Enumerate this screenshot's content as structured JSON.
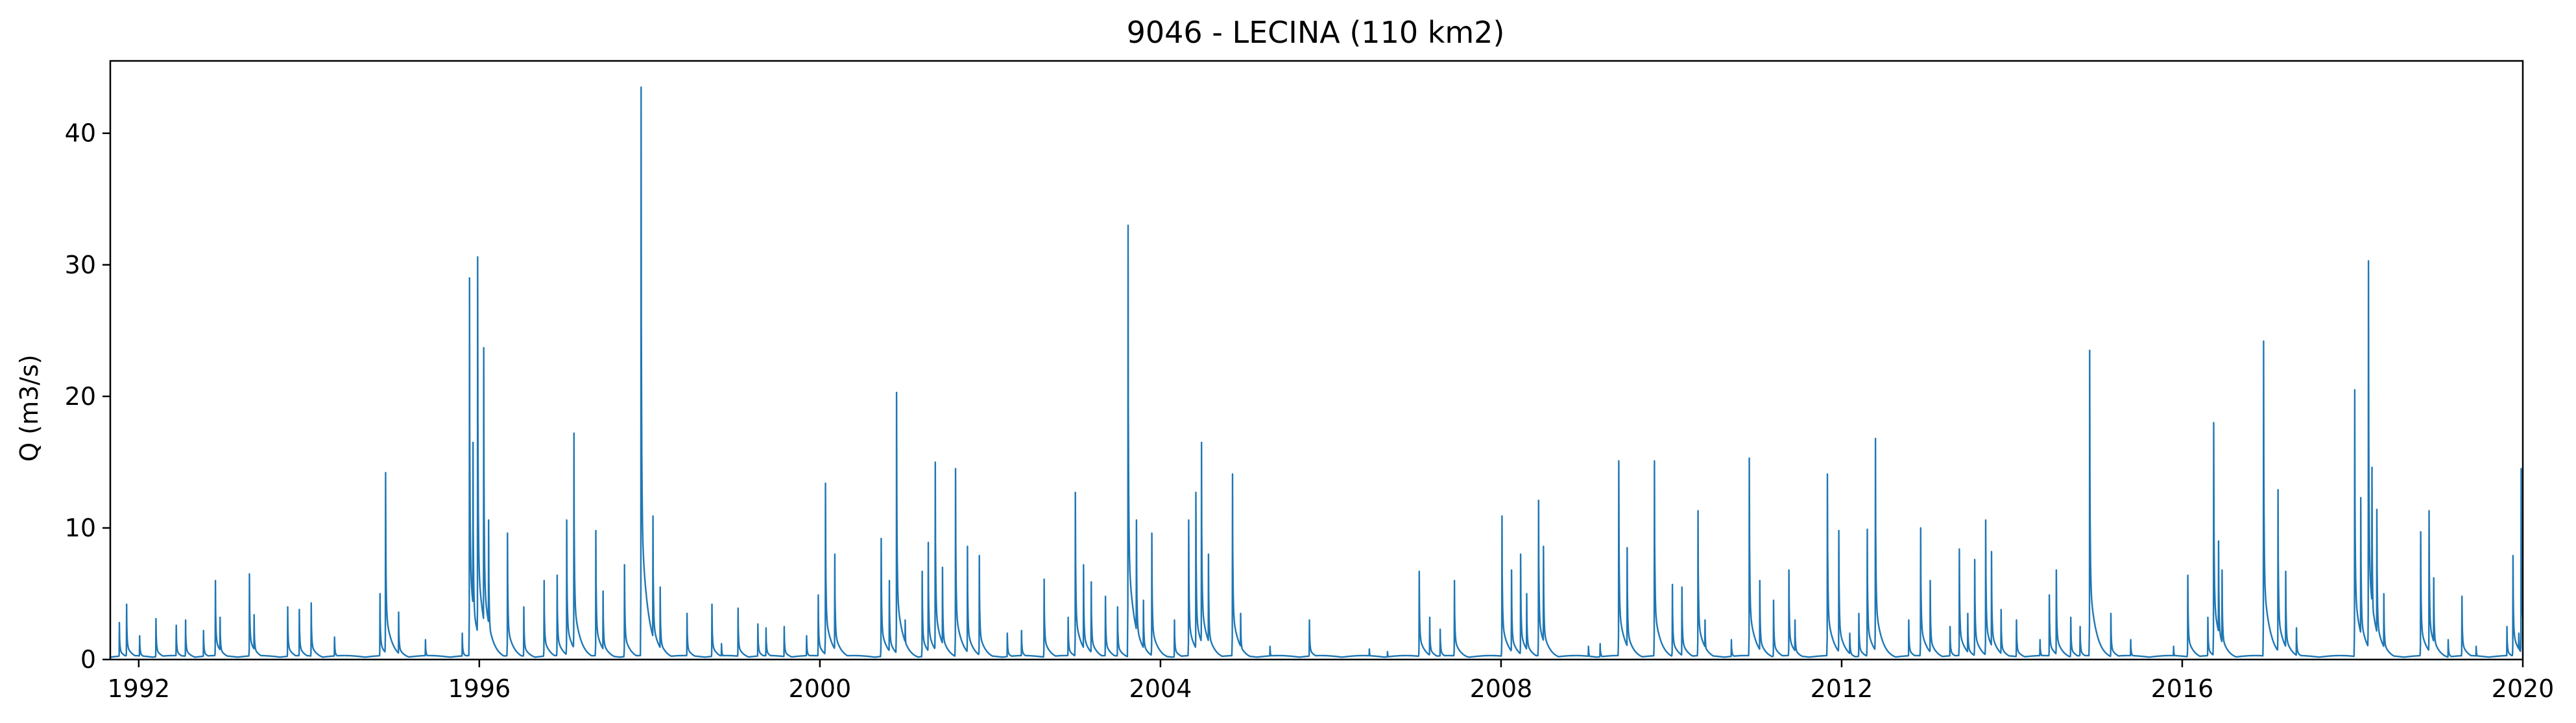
{
  "chart_data": {
    "type": "line",
    "title": "9046 - LECINA (110 km2)",
    "xlabel": "",
    "ylabel": "Q (m3/s)",
    "xlim": [
      "1991-09-01",
      "2020-01-01"
    ],
    "ylim": [
      0,
      45.5
    ],
    "x_ticks": [
      "1992",
      "1996",
      "2000",
      "2004",
      "2008",
      "2012",
      "2016",
      "2020"
    ],
    "y_ticks": [
      "0",
      "10",
      "20",
      "30",
      "40"
    ],
    "grid": false,
    "legend": "none",
    "series": [
      {
        "color": "#1f77b4",
        "base_flow": 0.3,
        "peaks": [
          [
            "1991-10-10",
            2.8
          ],
          [
            "1991-11-10",
            4.2
          ],
          [
            "1992-01-05",
            1.8
          ],
          [
            "1992-03-15",
            3.1
          ],
          [
            "1992-06-10",
            2.6
          ],
          [
            "1992-07-20",
            3.0
          ],
          [
            "1992-10-05",
            2.2
          ],
          [
            "1992-11-25",
            6.0
          ],
          [
            "1992-12-15",
            3.2
          ],
          [
            "1993-04-20",
            6.5
          ],
          [
            "1993-05-10",
            3.4
          ],
          [
            "1993-10-01",
            4.0
          ],
          [
            "1993-11-20",
            3.8
          ],
          [
            "1994-01-10",
            4.3
          ],
          [
            "1994-04-20",
            1.7
          ],
          [
            "1994-11-01",
            5.0
          ],
          [
            "1994-11-25",
            14.2
          ],
          [
            "1995-01-20",
            3.6
          ],
          [
            "1995-05-15",
            1.5
          ],
          [
            "1995-10-20",
            2.0
          ],
          [
            "1995-11-20",
            29.0
          ],
          [
            "1995-12-05",
            16.5
          ],
          [
            "1995-12-25",
            30.6
          ],
          [
            "1996-01-20",
            23.7
          ],
          [
            "1996-02-10",
            10.6
          ],
          [
            "1996-05-01",
            9.6
          ],
          [
            "1996-07-10",
            4.0
          ],
          [
            "1996-10-05",
            6.0
          ],
          [
            "1996-11-30",
            6.4
          ],
          [
            "1997-01-10",
            10.6
          ],
          [
            "1997-02-10",
            17.2
          ],
          [
            "1997-05-15",
            9.8
          ],
          [
            "1997-06-15",
            5.2
          ],
          [
            "1997-09-15",
            7.2
          ],
          [
            "1997-11-25",
            43.5
          ],
          [
            "1998-01-15",
            10.9
          ],
          [
            "1998-02-15",
            5.5
          ],
          [
            "1998-06-10",
            3.5
          ],
          [
            "1998-09-25",
            4.2
          ],
          [
            "1998-11-05",
            1.2
          ],
          [
            "1999-01-15",
            3.9
          ],
          [
            "1999-04-10",
            2.7
          ],
          [
            "1999-05-15",
            2.4
          ],
          [
            "1999-08-01",
            2.5
          ],
          [
            "1999-11-05",
            1.8
          ],
          [
            "1999-12-25",
            4.9
          ],
          [
            "2000-01-25",
            13.4
          ],
          [
            "2000-03-05",
            8.0
          ],
          [
            "2000-09-20",
            9.2
          ],
          [
            "2000-10-25",
            6.0
          ],
          [
            "2000-11-25",
            20.3
          ],
          [
            "2001-01-01",
            3.0
          ],
          [
            "2001-03-15",
            6.7
          ],
          [
            "2001-04-10",
            8.9
          ],
          [
            "2001-05-10",
            15.0
          ],
          [
            "2001-06-10",
            7.0
          ],
          [
            "2001-08-05",
            14.5
          ],
          [
            "2001-09-25",
            8.6
          ],
          [
            "2001-11-15",
            7.9
          ],
          [
            "2002-03-15",
            2.0
          ],
          [
            "2002-05-15",
            2.2
          ],
          [
            "2002-08-20",
            6.1
          ],
          [
            "2002-12-01",
            3.2
          ],
          [
            "2003-01-01",
            12.7
          ],
          [
            "2003-02-05",
            7.2
          ],
          [
            "2003-03-10",
            5.9
          ],
          [
            "2003-05-10",
            4.8
          ],
          [
            "2003-07-01",
            4.0
          ],
          [
            "2003-08-15",
            33.0
          ],
          [
            "2003-09-20",
            10.6
          ],
          [
            "2003-10-20",
            4.5
          ],
          [
            "2003-11-25",
            9.6
          ],
          [
            "2004-03-01",
            3.0
          ],
          [
            "2004-05-01",
            10.6
          ],
          [
            "2004-06-01",
            12.7
          ],
          [
            "2004-06-25",
            16.5
          ],
          [
            "2004-07-25",
            8.0
          ],
          [
            "2004-11-05",
            14.1
          ],
          [
            "2004-12-10",
            3.5
          ],
          [
            "2005-04-15",
            1.0
          ],
          [
            "2005-10-01",
            3.0
          ],
          [
            "2006-06-15",
            0.8
          ],
          [
            "2006-09-01",
            0.6
          ],
          [
            "2007-01-15",
            6.7
          ],
          [
            "2007-03-01",
            3.2
          ],
          [
            "2007-04-15",
            2.3
          ],
          [
            "2007-06-15",
            6.0
          ],
          [
            "2008-01-05",
            10.9
          ],
          [
            "2008-02-15",
            6.8
          ],
          [
            "2008-03-25",
            8.0
          ],
          [
            "2008-04-20",
            5.0
          ],
          [
            "2008-06-10",
            12.1
          ],
          [
            "2008-07-01",
            8.6
          ],
          [
            "2009-01-10",
            1.0
          ],
          [
            "2009-03-01",
            1.2
          ],
          [
            "2009-05-20",
            15.1
          ],
          [
            "2009-06-25",
            8.5
          ],
          [
            "2009-10-20",
            15.1
          ],
          [
            "2010-01-05",
            5.7
          ],
          [
            "2010-02-15",
            5.5
          ],
          [
            "2010-04-25",
            11.3
          ],
          [
            "2010-05-25",
            3.0
          ],
          [
            "2010-09-15",
            1.5
          ],
          [
            "2010-12-01",
            15.3
          ],
          [
            "2011-01-15",
            6.0
          ],
          [
            "2011-03-15",
            4.5
          ],
          [
            "2011-05-20",
            6.8
          ],
          [
            "2011-06-15",
            3.0
          ],
          [
            "2011-11-01",
            14.1
          ],
          [
            "2011-12-20",
            9.8
          ],
          [
            "2012-02-05",
            2.0
          ],
          [
            "2012-03-15",
            3.5
          ],
          [
            "2012-04-20",
            9.9
          ],
          [
            "2012-05-25",
            16.8
          ],
          [
            "2012-10-15",
            3.0
          ],
          [
            "2012-12-05",
            10.0
          ],
          [
            "2013-01-15",
            6.0
          ],
          [
            "2013-04-10",
            2.5
          ],
          [
            "2013-05-20",
            8.4
          ],
          [
            "2013-06-25",
            3.5
          ],
          [
            "2013-07-25",
            7.6
          ],
          [
            "2013-09-10",
            10.6
          ],
          [
            "2013-10-05",
            8.2
          ],
          [
            "2013-11-15",
            3.8
          ],
          [
            "2014-01-20",
            3.0
          ],
          [
            "2014-05-01",
            1.5
          ],
          [
            "2014-06-10",
            4.9
          ],
          [
            "2014-07-10",
            6.8
          ],
          [
            "2014-09-10",
            3.2
          ],
          [
            "2014-10-20",
            2.5
          ],
          [
            "2014-11-30",
            23.5
          ],
          [
            "2015-03-01",
            3.5
          ],
          [
            "2015-05-25",
            1.5
          ],
          [
            "2015-11-25",
            1.0
          ],
          [
            "2016-01-25",
            6.4
          ],
          [
            "2016-04-20",
            3.2
          ],
          [
            "2016-05-15",
            18.0
          ],
          [
            "2016-06-05",
            9.0
          ],
          [
            "2016-06-20",
            6.8
          ],
          [
            "2016-12-15",
            24.2
          ],
          [
            "2017-02-15",
            12.9
          ],
          [
            "2017-03-20",
            6.7
          ],
          [
            "2017-05-05",
            2.4
          ],
          [
            "2018-01-10",
            20.5
          ],
          [
            "2018-02-05",
            12.3
          ],
          [
            "2018-03-10",
            30.3
          ],
          [
            "2018-03-25",
            14.6
          ],
          [
            "2018-04-15",
            11.4
          ],
          [
            "2018-05-15",
            5.0
          ],
          [
            "2018-10-20",
            9.7
          ],
          [
            "2018-11-25",
            11.3
          ],
          [
            "2018-12-15",
            6.2
          ],
          [
            "2019-02-15",
            1.5
          ],
          [
            "2019-04-15",
            4.8
          ],
          [
            "2019-06-15",
            1.0
          ],
          [
            "2019-10-25",
            2.5
          ],
          [
            "2019-11-20",
            7.9
          ],
          [
            "2019-12-15",
            2.0
          ],
          [
            "2019-12-25",
            14.5
          ]
        ]
      }
    ]
  }
}
